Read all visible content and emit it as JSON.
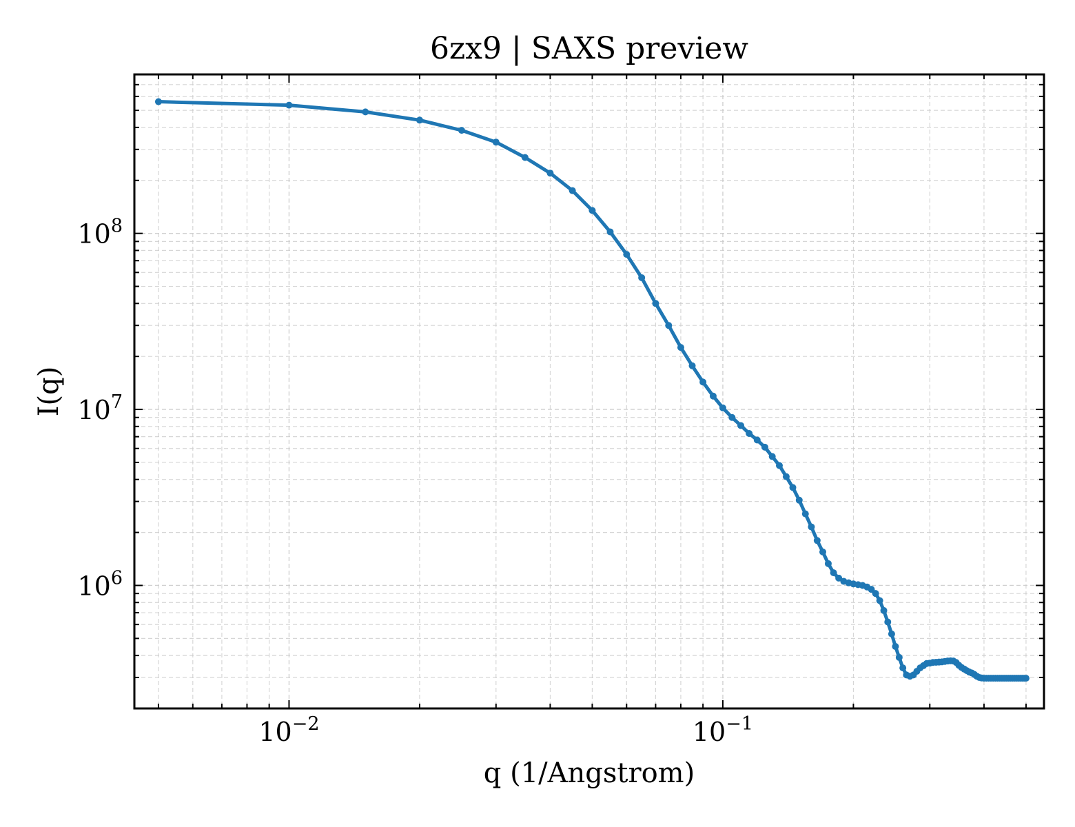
{
  "chart_data": {
    "type": "line",
    "title": "6zx9 | SAXS preview",
    "xlabel": "q (1/Angstrom)",
    "ylabel": "I(q)",
    "xscale": "log",
    "yscale": "log",
    "xlim": [
      0.0044,
      0.55
    ],
    "ylim": [
      200000,
      800000000
    ],
    "x_ticks": [
      {
        "value": 0.01,
        "base": "10",
        "exp": "−2"
      },
      {
        "value": 0.1,
        "base": "10",
        "exp": "−1"
      }
    ],
    "y_ticks": [
      {
        "value": 1000000,
        "base": "10",
        "exp": "6"
      },
      {
        "value": 10000000,
        "base": "10",
        "exp": "7"
      },
      {
        "value": 100000000,
        "base": "10",
        "exp": "8"
      }
    ],
    "grid": true,
    "colors": {
      "line": "#1f77b4"
    },
    "series": [
      {
        "x": [
          0.005,
          0.01,
          0.015,
          0.02,
          0.025,
          0.03,
          0.035,
          0.04,
          0.045,
          0.05,
          0.055,
          0.06,
          0.065,
          0.07,
          0.075,
          0.08,
          0.085,
          0.09,
          0.095,
          0.1,
          0.105,
          0.11,
          0.115,
          0.12,
          0.125,
          0.13,
          0.135,
          0.14,
          0.145,
          0.15,
          0.155,
          0.16,
          0.165,
          0.17,
          0.175,
          0.18,
          0.185,
          0.19,
          0.195,
          0.2,
          0.205,
          0.21,
          0.215,
          0.22,
          0.225,
          0.23,
          0.235,
          0.24,
          0.245,
          0.25,
          0.255,
          0.26,
          0.265,
          0.27,
          0.275,
          0.28,
          0.285,
          0.29,
          0.295,
          0.3,
          0.305,
          0.31,
          0.315,
          0.32,
          0.325,
          0.33,
          0.335,
          0.34,
          0.345,
          0.35,
          0.355,
          0.36,
          0.365,
          0.37,
          0.375,
          0.38,
          0.385,
          0.39,
          0.395,
          0.4,
          0.405,
          0.41,
          0.415,
          0.42,
          0.425,
          0.43,
          0.435,
          0.44,
          0.445,
          0.45,
          0.455,
          0.46,
          0.465,
          0.47,
          0.475,
          0.48,
          0.485,
          0.49,
          0.495,
          0.5
        ],
        "y": [
          560000000,
          535000000,
          490000000,
          440000000,
          385000000,
          330000000,
          270000000,
          220000000,
          175000000,
          135000000,
          102000000,
          76000000,
          56000000,
          40000000,
          30000000,
          22500000,
          17700000,
          14300000,
          11900000,
          10200000,
          9000000,
          8100000,
          7300000,
          6700000,
          6100000,
          5400000,
          4800000,
          4150000,
          3600000,
          3050000,
          2550000,
          2150000,
          1800000,
          1550000,
          1330000,
          1180000,
          1100000,
          1055000,
          1035000,
          1020000,
          1010000,
          1000000,
          980000,
          950000,
          900000,
          820000,
          720000,
          620000,
          530000,
          450000,
          390000,
          340000,
          310000,
          305000,
          310000,
          325000,
          340000,
          350000,
          360000,
          362000,
          365000,
          366000,
          367000,
          368000,
          370000,
          372000,
          373000,
          372000,
          365000,
          352000,
          342000,
          335000,
          328000,
          322000,
          318000,
          312000,
          305000,
          300000,
          298000,
          297000,
          297000,
          297000,
          297000,
          297000,
          297000,
          297000,
          297000,
          297000,
          297000,
          297000,
          297000,
          297000,
          297000,
          297000,
          297000,
          297000,
          297000,
          297000,
          297000,
          297000
        ]
      }
    ]
  }
}
